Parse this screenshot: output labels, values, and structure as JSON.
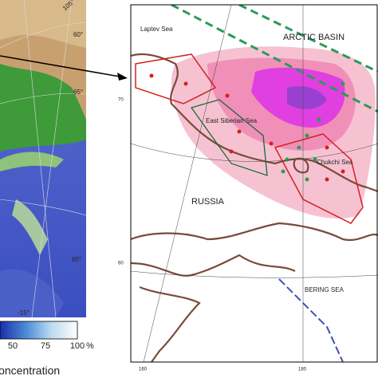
{
  "left_map": {
    "graticule_labels": [
      "105°",
      "60°",
      "65°",
      "65°",
      "-15°"
    ]
  },
  "colorbar": {
    "ticks": [
      50,
      75,
      100
    ],
    "unit": "%",
    "label": "Concentration"
  },
  "right_map": {
    "regions": [
      "Laptev Sea",
      "ARCTIC BASIN",
      "East Siberian Sea",
      "Chukchi Sea",
      "RUSSIA",
      "BERING SEA"
    ],
    "lat_labels": [
      70,
      60
    ],
    "lon_labels": [
      160,
      180
    ]
  }
}
